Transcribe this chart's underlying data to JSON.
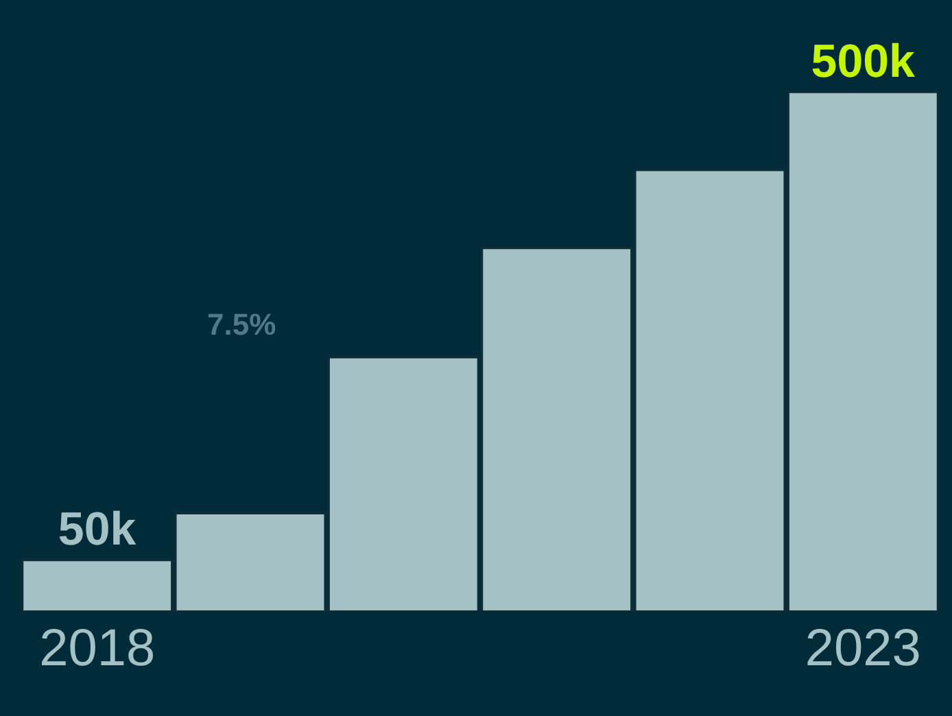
{
  "chart_data": {
    "type": "bar",
    "categories": [
      "2018",
      null,
      null,
      null,
      null,
      "2023"
    ],
    "values": [
      50,
      95,
      245,
      350,
      425,
      500
    ],
    "color": "#a4c2c6",
    "value_labels": [
      "50k",
      null,
      null,
      null,
      null,
      "500k"
    ],
    "annotations": [
      "7.5%"
    ],
    "grid": false,
    "legend": false
  }
}
